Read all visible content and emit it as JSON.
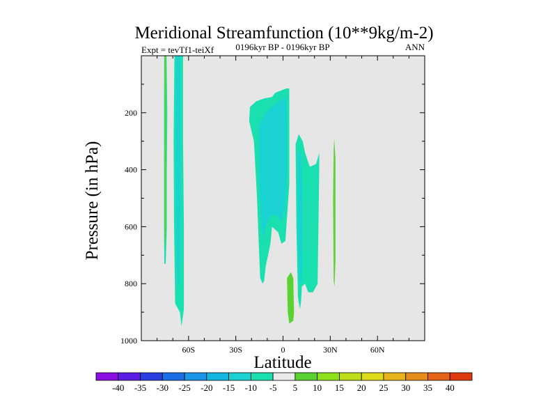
{
  "chart_data": {
    "type": "filled-contour",
    "title": "Meridional Streamfunction (10**9kg/m-2)",
    "left_subtitle": "Expt = tevTf1-teiXf",
    "center_subtitle": "0196kyr BP - 0196kyr BP",
    "right_subtitle": "ANN",
    "xlabel": "Latitude",
    "ylabel": "Pressure (in hPa)",
    "xlim": [
      -90,
      90
    ],
    "ylim": [
      0,
      1000
    ],
    "y_inverted": true,
    "x_ticks": [
      {
        "value": -60,
        "label": "60S"
      },
      {
        "value": -30,
        "label": "30S"
      },
      {
        "value": 0,
        "label": "0"
      },
      {
        "value": 30,
        "label": "30N"
      },
      {
        "value": 60,
        "label": "60N"
      }
    ],
    "y_ticks": [
      {
        "value": 200,
        "label": "200"
      },
      {
        "value": 400,
        "label": "400"
      },
      {
        "value": 600,
        "label": "600"
      },
      {
        "value": 800,
        "label": "800"
      },
      {
        "value": 1000,
        "label": "1000"
      }
    ],
    "background_color": "#e6e6e6",
    "colorbar": {
      "labels": [
        "-40",
        "-35",
        "-30",
        "-25",
        "-20",
        "-15",
        "-10",
        "-5",
        "5",
        "10",
        "15",
        "20",
        "25",
        "30",
        "35",
        "40"
      ],
      "colors": [
        "#8a0fe0",
        "#5a1ee6",
        "#2a3ee0",
        "#1a6ee6",
        "#1a96e6",
        "#12b6e0",
        "#1ad2d2",
        "#1ae0b0",
        "#eaeaea",
        "#5ad232",
        "#8ee01a",
        "#bede1a",
        "#dedc1a",
        "#e6b41a",
        "#e68c1a",
        "#e6641a",
        "#e03a12"
      ]
    },
    "regions": [
      {
        "name": "band-neg-75",
        "color": "#1ae0b0",
        "points": [
          [
            -75.5,
            0
          ],
          [
            -74,
            0
          ],
          [
            -73.5,
            200
          ],
          [
            -73.8,
            400
          ],
          [
            -73.8,
            600
          ],
          [
            -74.5,
            730
          ],
          [
            -75.4,
            730
          ],
          [
            -75.6,
            600
          ],
          [
            -75.6,
            200
          ]
        ]
      },
      {
        "name": "band-pos-75",
        "color": "#5ad232",
        "points": [
          [
            -75.3,
            0
          ],
          [
            -74.3,
            0
          ],
          [
            -74.3,
            600
          ],
          [
            -74.8,
            680
          ],
          [
            -75.3,
            600
          ]
        ]
      },
      {
        "name": "band-neg-64",
        "color": "#1ae0b0",
        "points": [
          [
            -69,
            0
          ],
          [
            -63.5,
            0
          ],
          [
            -63.5,
            300
          ],
          [
            -63,
            600
          ],
          [
            -63,
            890
          ],
          [
            -64.5,
            950
          ],
          [
            -65.5,
            900
          ],
          [
            -68.5,
            870
          ],
          [
            -69.2,
            600
          ],
          [
            -69.5,
            300
          ]
        ]
      },
      {
        "name": "band-neg-64-inner",
        "color": "#1ad2d2",
        "points": [
          [
            -67.8,
            0
          ],
          [
            -65.5,
            0
          ],
          [
            -65.3,
            300
          ],
          [
            -65.3,
            600
          ],
          [
            -65.8,
            800
          ],
          [
            -67,
            820
          ],
          [
            -67.8,
            600
          ],
          [
            -68,
            300
          ]
        ]
      },
      {
        "name": "cell-neg-south",
        "color": "#1ae0b0",
        "points": [
          [
            -21.5,
            230
          ],
          [
            -21,
            180
          ],
          [
            -17,
            160
          ],
          [
            -12,
            150
          ],
          [
            -7,
            145
          ],
          [
            -5,
            130
          ],
          [
            2,
            115
          ],
          [
            4,
            115
          ],
          [
            4,
            450
          ],
          [
            1.5,
            650
          ],
          [
            -1,
            660
          ],
          [
            -3,
            620
          ],
          [
            -7,
            600
          ],
          [
            -8,
            660
          ],
          [
            -11,
            740
          ],
          [
            -12,
            790
          ],
          [
            -13,
            800
          ],
          [
            -14.5,
            780
          ],
          [
            -15.5,
            650
          ],
          [
            -16.5,
            500
          ],
          [
            -18.5,
            300
          ]
        ]
      },
      {
        "name": "cell-neg-south-inner",
        "color": "#1ad2d2",
        "points": [
          [
            -15.5,
            250
          ],
          [
            -11,
            200
          ],
          [
            -5,
            170
          ],
          [
            2,
            145
          ],
          [
            2.5,
            250
          ],
          [
            2.5,
            400
          ],
          [
            1,
            540
          ],
          [
            -1,
            580
          ],
          [
            -4,
            560
          ],
          [
            -8,
            560
          ],
          [
            -11,
            600
          ],
          [
            -12.5,
            650
          ],
          [
            -13.5,
            600
          ],
          [
            -14.5,
            500
          ],
          [
            -15.5,
            400
          ]
        ]
      },
      {
        "name": "cell-neg-north",
        "color": "#1ae0b0",
        "points": [
          [
            8,
            310
          ],
          [
            10,
            275
          ],
          [
            12.5,
            300
          ],
          [
            14,
            340
          ],
          [
            17,
            390
          ],
          [
            21,
            380
          ],
          [
            23,
            340
          ],
          [
            23,
            400
          ],
          [
            22,
            800
          ],
          [
            19,
            830
          ],
          [
            16,
            830
          ],
          [
            14,
            800
          ],
          [
            12,
            810
          ],
          [
            11.5,
            860
          ],
          [
            10.8,
            890
          ],
          [
            9.5,
            850
          ],
          [
            8.5,
            600
          ]
        ]
      },
      {
        "name": "cell-neg-north-inner",
        "color": "#1ad2d2",
        "points": [
          [
            9.5,
            350
          ],
          [
            11,
            330
          ],
          [
            12,
            400
          ],
          [
            12.5,
            600
          ],
          [
            12,
            790
          ],
          [
            10.5,
            800
          ],
          [
            9.5,
            600
          ]
        ]
      },
      {
        "name": "cell-pos-low",
        "color": "#5ad232",
        "points": [
          [
            2.5,
            780
          ],
          [
            5,
            760
          ],
          [
            6.5,
            780
          ],
          [
            7,
            900
          ],
          [
            6.5,
            930
          ],
          [
            4,
            940
          ],
          [
            3,
            900
          ]
        ]
      },
      {
        "name": "cell-pos-north",
        "color": "#5ad232",
        "points": [
          [
            32.5,
            290
          ],
          [
            33.3,
            360
          ],
          [
            33.3,
            720
          ],
          [
            32.7,
            810
          ],
          [
            32.2,
            790
          ],
          [
            31.8,
            500
          ],
          [
            32.2,
            330
          ]
        ]
      }
    ]
  }
}
